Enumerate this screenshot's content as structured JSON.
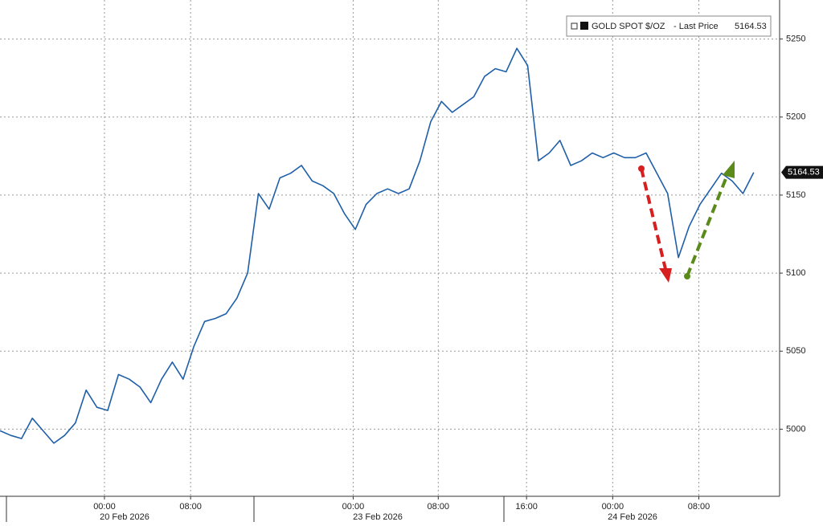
{
  "chart_data": {
    "type": "line",
    "x": [
      0,
      1,
      2,
      3,
      4,
      5,
      6,
      7,
      8,
      9,
      10,
      11,
      12,
      13,
      14,
      15,
      16,
      17,
      18,
      19,
      20,
      21,
      22,
      23,
      24,
      25,
      26,
      27,
      28,
      29,
      30,
      31,
      32,
      33,
      34,
      35,
      36,
      37,
      38,
      39,
      40,
      41,
      42,
      43,
      44,
      45,
      46,
      47,
      48,
      49,
      50,
      51,
      52,
      53,
      54,
      55,
      56,
      57,
      58,
      59,
      60,
      61,
      62,
      63,
      64,
      65,
      66,
      67,
      68,
      69,
      70
    ],
    "series": [
      {
        "name": "GOLD SPOT $/OZ",
        "color": "#1f5fa8",
        "values": [
          4999,
          4996,
          4994,
          5007,
          4999,
          4991,
          4996,
          5004,
          5025,
          5014,
          5012,
          5035,
          5032,
          5027,
          5017,
          5032,
          5043,
          5032,
          5053,
          5069,
          5071,
          5074,
          5084,
          5100,
          5151,
          5141,
          5161,
          5164,
          5169,
          5159,
          5156,
          5151,
          5138,
          5128,
          5144,
          5151,
          5154,
          5151,
          5154,
          5172,
          5197,
          5210,
          5203,
          5208,
          5213,
          5226,
          5231,
          5229,
          5244,
          5233,
          5172,
          5177,
          5185,
          5169,
          5172,
          5177,
          5174,
          5177,
          5174,
          5174,
          5177,
          5164,
          5151,
          5110,
          5130,
          5144,
          5154,
          5164,
          5159,
          5151,
          5164.53
        ]
      }
    ],
    "legend_note": "- Last Price",
    "xlim": [
      0,
      72.4
    ],
    "xticks": [
      {
        "value": 9.7,
        "label": "00:00"
      },
      {
        "value": 17.7,
        "label": "08:00"
      },
      {
        "value": 32.8,
        "label": "00:00"
      },
      {
        "value": 40.7,
        "label": "08:00"
      },
      {
        "value": 48.9,
        "label": "16:00"
      },
      {
        "value": 56.9,
        "label": "00:00"
      },
      {
        "value": 64.9,
        "label": "08:00"
      }
    ],
    "date_labels": [
      "20 Feb 2026",
      "23 Feb 2026",
      "24 Feb 2026"
    ],
    "ylim": [
      4957,
      5275
    ],
    "yticks": [
      5000,
      5050,
      5100,
      5150,
      5200,
      5250
    ],
    "grid": true
  }
}
